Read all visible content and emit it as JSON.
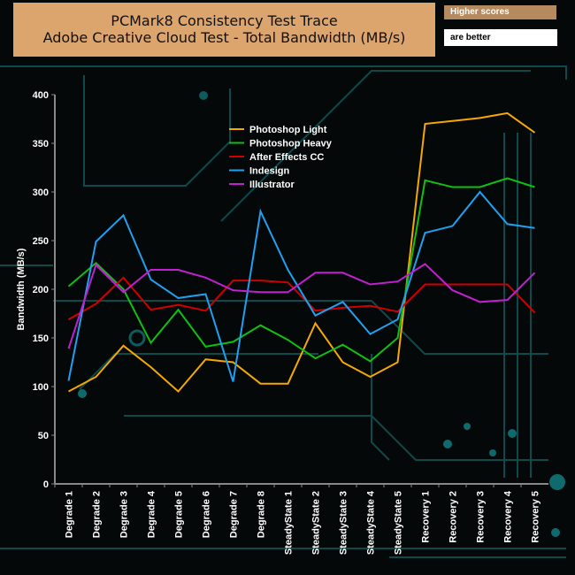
{
  "header": {
    "line1": "PCMark8 Consistency Test Trace",
    "line2": "Adobe Creative Cloud Test - Total Bandwidth (MB/s)"
  },
  "badge": {
    "top": "Higher scores",
    "bottom": "are better"
  },
  "chart_data": {
    "type": "line",
    "title": "PCMark8 Consistency Test Trace - Adobe Creative Cloud Test - Total Bandwidth (MB/s)",
    "xlabel": "",
    "ylabel": "Bandwidth (MB/s)",
    "ylim": [
      0,
      400
    ],
    "yticks": [
      0,
      50,
      100,
      150,
      200,
      250,
      300,
      350,
      400
    ],
    "legend_position": "top-center",
    "categories": [
      "Degrade 1",
      "Degrade 2",
      "Degrade 3",
      "Degrade 4",
      "Degrade 5",
      "Degrade 6",
      "Degrade 7",
      "Degrade 8",
      "SteadyState 1",
      "SteadyState 2",
      "SteadyState 3",
      "SteadyState 4",
      "SteadyState 5",
      "Recovery 1",
      "Recovery 2",
      "Recovery 3",
      "Recovery 4",
      "Recovery 5"
    ],
    "series": [
      {
        "name": "Photoshop Light",
        "color": "#f5a800",
        "values": [
          95,
          110,
          142,
          120,
          95,
          128,
          125,
          103,
          103,
          165,
          125,
          110,
          125,
          370,
          373,
          376,
          381,
          361
        ]
      },
      {
        "name": "Photoshop Heavy",
        "color": "#10c010",
        "values": [
          203,
          227,
          200,
          145,
          179,
          141,
          146,
          163,
          148,
          129,
          143,
          126,
          150,
          312,
          305,
          305,
          314,
          305
        ]
      },
      {
        "name": "After Effects CC",
        "color": "#d00000",
        "values": [
          169,
          185,
          212,
          179,
          184,
          178,
          209,
          209,
          207,
          178,
          181,
          183,
          177,
          205,
          205,
          205,
          205,
          176
        ]
      },
      {
        "name": "Indesign",
        "color": "#20a0f0",
        "values": [
          106,
          249,
          276,
          210,
          191,
          195,
          105,
          280,
          220,
          173,
          187,
          154,
          169,
          258,
          265,
          300,
          267,
          263
        ]
      },
      {
        "name": "Illustrator",
        "color": "#c020d0",
        "values": [
          139,
          225,
          197,
          220,
          220,
          212,
          199,
          197,
          197,
          217,
          217,
          205,
          208,
          226,
          199,
          187,
          189,
          217
        ]
      }
    ]
  }
}
